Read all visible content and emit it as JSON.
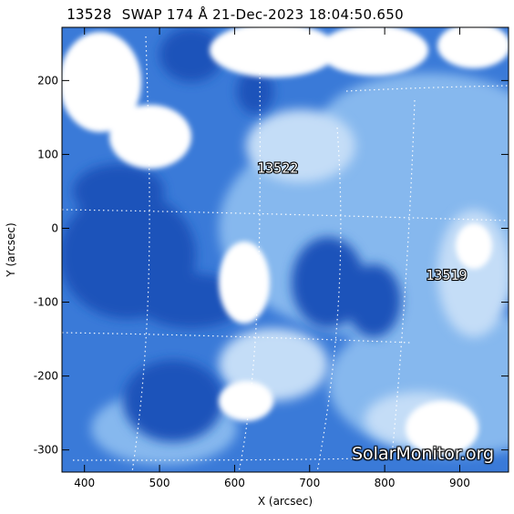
{
  "title": {
    "region": "13528",
    "text": "SWAP 174 Å 21-Dec-2023 18:04:50.650"
  },
  "axes": {
    "xlabel": "X (arcsec)",
    "ylabel": "Y (arcsec)",
    "xlim": [
      370,
      965
    ],
    "ylim": [
      -330,
      272
    ],
    "xticks": [
      400,
      500,
      600,
      700,
      800,
      900
    ],
    "yticks": [
      200,
      100,
      0,
      -100,
      -200,
      -300
    ]
  },
  "regions": [
    {
      "number": "13522",
      "x": 630,
      "y": 75
    },
    {
      "number": "13519",
      "x": 855,
      "y": -70
    }
  ],
  "colors": {
    "dark": "#1e52ba",
    "mid": "#3a7ad8",
    "light": "#86b8ee",
    "pale": "#c4ddf7",
    "bright": "#ffffff",
    "grid": "#ffffff"
  },
  "watermark": "SolarMonitor.org"
}
